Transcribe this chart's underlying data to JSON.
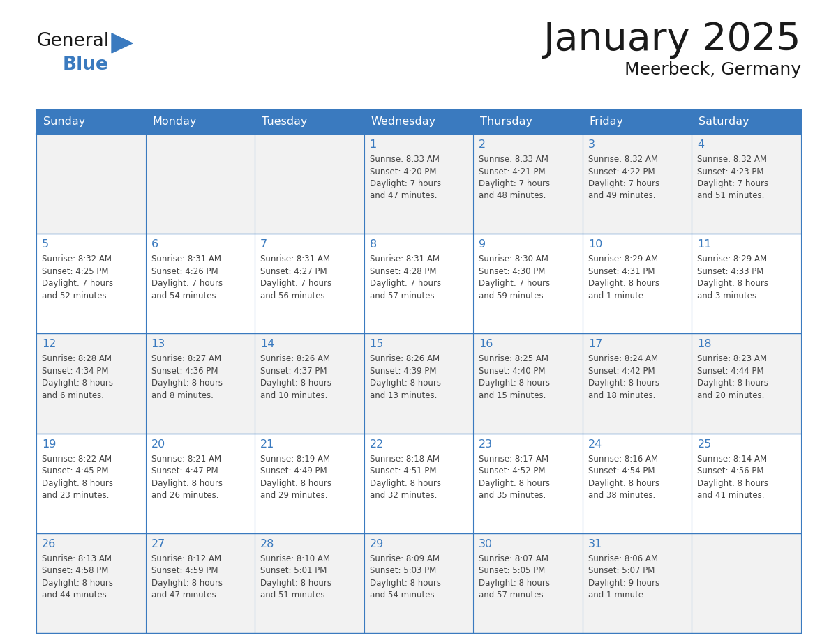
{
  "title": "January 2025",
  "subtitle": "Meerbeck, Germany",
  "header_color": "#3a7abf",
  "header_text_color": "#ffffff",
  "cell_bg_even": "#f2f2f2",
  "cell_bg_odd": "#ffffff",
  "cell_border_color": "#3a7abf",
  "day_number_color": "#3a7abf",
  "text_color": "#444444",
  "days_of_week": [
    "Sunday",
    "Monday",
    "Tuesday",
    "Wednesday",
    "Thursday",
    "Friday",
    "Saturday"
  ],
  "calendar": [
    [
      {
        "day": "",
        "info": ""
      },
      {
        "day": "",
        "info": ""
      },
      {
        "day": "",
        "info": ""
      },
      {
        "day": "1",
        "info": "Sunrise: 8:33 AM\nSunset: 4:20 PM\nDaylight: 7 hours\nand 47 minutes."
      },
      {
        "day": "2",
        "info": "Sunrise: 8:33 AM\nSunset: 4:21 PM\nDaylight: 7 hours\nand 48 minutes."
      },
      {
        "day": "3",
        "info": "Sunrise: 8:32 AM\nSunset: 4:22 PM\nDaylight: 7 hours\nand 49 minutes."
      },
      {
        "day": "4",
        "info": "Sunrise: 8:32 AM\nSunset: 4:23 PM\nDaylight: 7 hours\nand 51 minutes."
      }
    ],
    [
      {
        "day": "5",
        "info": "Sunrise: 8:32 AM\nSunset: 4:25 PM\nDaylight: 7 hours\nand 52 minutes."
      },
      {
        "day": "6",
        "info": "Sunrise: 8:31 AM\nSunset: 4:26 PM\nDaylight: 7 hours\nand 54 minutes."
      },
      {
        "day": "7",
        "info": "Sunrise: 8:31 AM\nSunset: 4:27 PM\nDaylight: 7 hours\nand 56 minutes."
      },
      {
        "day": "8",
        "info": "Sunrise: 8:31 AM\nSunset: 4:28 PM\nDaylight: 7 hours\nand 57 minutes."
      },
      {
        "day": "9",
        "info": "Sunrise: 8:30 AM\nSunset: 4:30 PM\nDaylight: 7 hours\nand 59 minutes."
      },
      {
        "day": "10",
        "info": "Sunrise: 8:29 AM\nSunset: 4:31 PM\nDaylight: 8 hours\nand 1 minute."
      },
      {
        "day": "11",
        "info": "Sunrise: 8:29 AM\nSunset: 4:33 PM\nDaylight: 8 hours\nand 3 minutes."
      }
    ],
    [
      {
        "day": "12",
        "info": "Sunrise: 8:28 AM\nSunset: 4:34 PM\nDaylight: 8 hours\nand 6 minutes."
      },
      {
        "day": "13",
        "info": "Sunrise: 8:27 AM\nSunset: 4:36 PM\nDaylight: 8 hours\nand 8 minutes."
      },
      {
        "day": "14",
        "info": "Sunrise: 8:26 AM\nSunset: 4:37 PM\nDaylight: 8 hours\nand 10 minutes."
      },
      {
        "day": "15",
        "info": "Sunrise: 8:26 AM\nSunset: 4:39 PM\nDaylight: 8 hours\nand 13 minutes."
      },
      {
        "day": "16",
        "info": "Sunrise: 8:25 AM\nSunset: 4:40 PM\nDaylight: 8 hours\nand 15 minutes."
      },
      {
        "day": "17",
        "info": "Sunrise: 8:24 AM\nSunset: 4:42 PM\nDaylight: 8 hours\nand 18 minutes."
      },
      {
        "day": "18",
        "info": "Sunrise: 8:23 AM\nSunset: 4:44 PM\nDaylight: 8 hours\nand 20 minutes."
      }
    ],
    [
      {
        "day": "19",
        "info": "Sunrise: 8:22 AM\nSunset: 4:45 PM\nDaylight: 8 hours\nand 23 minutes."
      },
      {
        "day": "20",
        "info": "Sunrise: 8:21 AM\nSunset: 4:47 PM\nDaylight: 8 hours\nand 26 minutes."
      },
      {
        "day": "21",
        "info": "Sunrise: 8:19 AM\nSunset: 4:49 PM\nDaylight: 8 hours\nand 29 minutes."
      },
      {
        "day": "22",
        "info": "Sunrise: 8:18 AM\nSunset: 4:51 PM\nDaylight: 8 hours\nand 32 minutes."
      },
      {
        "day": "23",
        "info": "Sunrise: 8:17 AM\nSunset: 4:52 PM\nDaylight: 8 hours\nand 35 minutes."
      },
      {
        "day": "24",
        "info": "Sunrise: 8:16 AM\nSunset: 4:54 PM\nDaylight: 8 hours\nand 38 minutes."
      },
      {
        "day": "25",
        "info": "Sunrise: 8:14 AM\nSunset: 4:56 PM\nDaylight: 8 hours\nand 41 minutes."
      }
    ],
    [
      {
        "day": "26",
        "info": "Sunrise: 8:13 AM\nSunset: 4:58 PM\nDaylight: 8 hours\nand 44 minutes."
      },
      {
        "day": "27",
        "info": "Sunrise: 8:12 AM\nSunset: 4:59 PM\nDaylight: 8 hours\nand 47 minutes."
      },
      {
        "day": "28",
        "info": "Sunrise: 8:10 AM\nSunset: 5:01 PM\nDaylight: 8 hours\nand 51 minutes."
      },
      {
        "day": "29",
        "info": "Sunrise: 8:09 AM\nSunset: 5:03 PM\nDaylight: 8 hours\nand 54 minutes."
      },
      {
        "day": "30",
        "info": "Sunrise: 8:07 AM\nSunset: 5:05 PM\nDaylight: 8 hours\nand 57 minutes."
      },
      {
        "day": "31",
        "info": "Sunrise: 8:06 AM\nSunset: 5:07 PM\nDaylight: 9 hours\nand 1 minute."
      },
      {
        "day": "",
        "info": ""
      }
    ]
  ],
  "logo_text_general": "General",
  "logo_text_blue": "Blue",
  "logo_triangle_color": "#3a7abf",
  "logo_general_color": "#1a1a1a"
}
